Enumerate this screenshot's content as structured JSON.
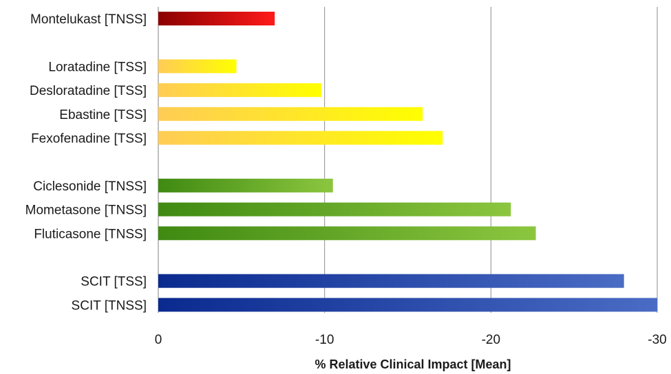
{
  "chart_data": {
    "type": "bar",
    "orientation": "horizontal",
    "xlabel": "% Relative Clinical Impact [Mean]",
    "xlim": [
      0,
      -30
    ],
    "xticks": [
      0,
      -10,
      -20,
      -30
    ],
    "grid": "vertical",
    "legend": "none",
    "groups": [
      {
        "color_start": "#8b0000",
        "color_end": "#ff1a1a",
        "bars": [
          {
            "label": "Montelukast [TNSS]",
            "value": -7.0
          }
        ]
      },
      {
        "color_start": "#ffcc55",
        "color_end": "#ffff00",
        "bars": [
          {
            "label": "Loratadine [TSS]",
            "value": -4.7
          },
          {
            "label": "Desloratadine [TSS]",
            "value": -9.8
          },
          {
            "label": "Ebastine [TSS]",
            "value": -15.9
          },
          {
            "label": "Fexofenadine [TSS]",
            "value": -17.1
          }
        ]
      },
      {
        "color_start": "#3f8a12",
        "color_end": "#8cc63f",
        "bars": [
          {
            "label": "Ciclesonide [TNSS]",
            "value": -10.5
          },
          {
            "label": "Mometasone [TNSS]",
            "value": -21.2
          },
          {
            "label": "Fluticasone [TNSS]",
            "value": -22.7
          }
        ]
      },
      {
        "color_start": "#0a2a8f",
        "color_end": "#4a6cc4",
        "bars": [
          {
            "label": "SCIT [TSS]",
            "value": -28.0
          },
          {
            "label": "SCIT [TNSS]",
            "value": -30.0
          }
        ]
      }
    ]
  }
}
